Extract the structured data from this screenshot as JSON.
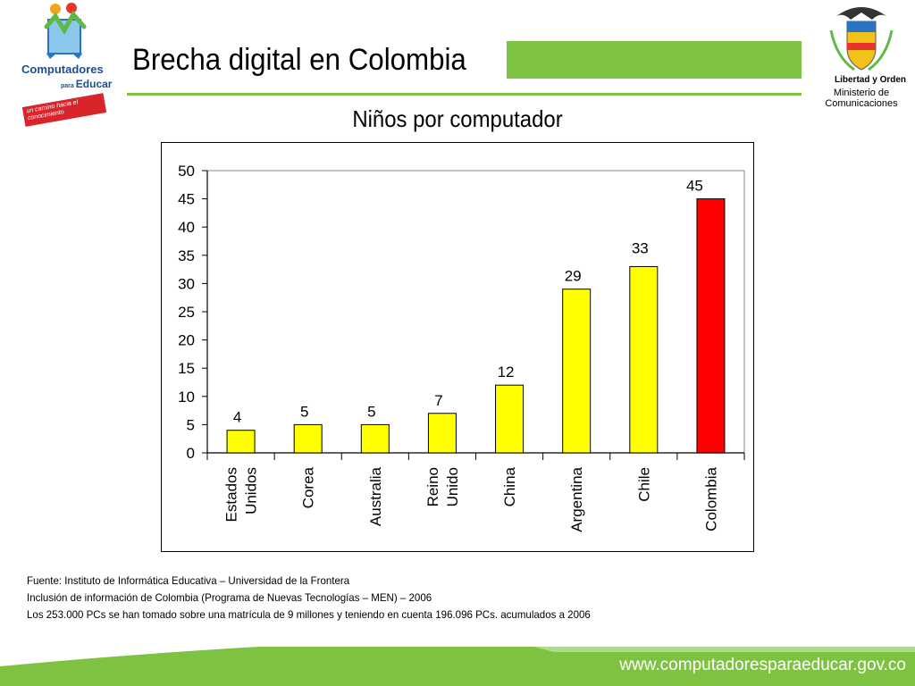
{
  "header": {
    "title": "Brecha digital en Colombia",
    "left_logo": {
      "icon": "computadores-para-educar-logo-icon",
      "line1": "Computadores",
      "line2_small": "para",
      "line2": "Educar",
      "slogan": "un camino hacia el conocimiento"
    },
    "right_logo": {
      "icon": "colombia-coat-of-arms-icon",
      "motto": "Libertad y Orden",
      "ministry_line1": "Ministerio de",
      "ministry_line2": "Comunicaciones"
    }
  },
  "chart_data": {
    "type": "bar",
    "title": "Niños por computador",
    "categories": [
      [
        "Estados",
        "Unidos"
      ],
      [
        "Corea"
      ],
      [
        "Australia"
      ],
      [
        "Reino",
        "Unido"
      ],
      [
        "China"
      ],
      [
        "Argentina"
      ],
      [
        "Chile"
      ],
      [
        "Colombia"
      ]
    ],
    "values": [
      4,
      5,
      5,
      7,
      12,
      29,
      33,
      45
    ],
    "bar_colors": [
      "#ffff00",
      "#ffff00",
      "#ffff00",
      "#ffff00",
      "#ffff00",
      "#ffff00",
      "#ffff00",
      "#ff0000"
    ],
    "ylim": [
      0,
      50
    ],
    "yticks": [
      0,
      5,
      10,
      15,
      20,
      25,
      30,
      35,
      40,
      45,
      50
    ],
    "grid": false
  },
  "footer": {
    "notes": [
      "Fuente: Instituto de Informática Educativa – Universidad de la Frontera",
      "Inclusión de información de Colombia (Programa de Nuevas Tecnologías – MEN) – 2006",
      "Los 253.000 PCs se han tomado sobre una matrícula de 9 millones y teniendo en cuenta 196.096 PCs. acumulados a 2006"
    ],
    "url": "www.computadoresparaeducar.gov.co",
    "band_color": "#7ec242"
  }
}
